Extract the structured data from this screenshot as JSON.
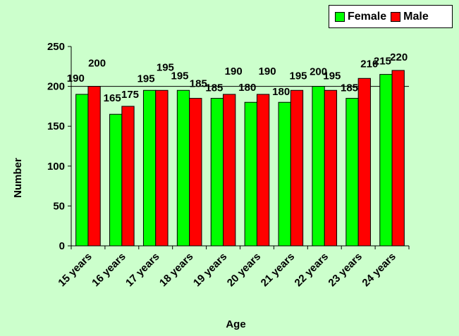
{
  "chart_data": {
    "type": "bar",
    "title": "",
    "xlabel": "Age",
    "ylabel": "Number",
    "categories": [
      "15 years",
      "16 years",
      "17 years",
      "18 years",
      "19 years",
      "20 years",
      "21 years",
      "22 years",
      "23 years",
      "24 years"
    ],
    "series": [
      {
        "name": "Female",
        "color": "#00ff00",
        "values": [
          190,
          165,
          195,
          195,
          185,
          180,
          180,
          200,
          185,
          215
        ]
      },
      {
        "name": "Male",
        "color": "#ff0000",
        "values": [
          200,
          175,
          195,
          185,
          190,
          190,
          195,
          195,
          210,
          220
        ]
      }
    ],
    "ylim": [
      0,
      250
    ],
    "yticks": [
      0,
      50,
      100,
      150,
      200,
      250
    ],
    "grid": "horizontal at 200 only",
    "legend_position": "top-right",
    "data_labels": true
  }
}
